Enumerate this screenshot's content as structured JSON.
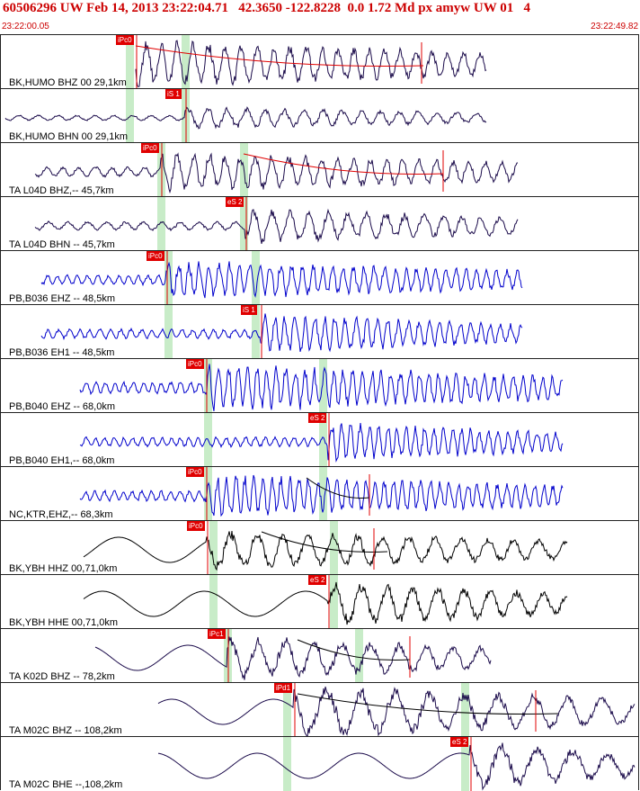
{
  "header": {
    "title": "60506296 UW Feb 14, 2013 23:22:04.71   42.3650 -122.8228  0.0 1.72 Md px amyw UW 01   4",
    "time_start": "23:22:00.05",
    "time_end": "23:22:49.82"
  },
  "colors": {
    "pick": "#e00000",
    "window": "#c8ecc8",
    "trace_dark": "#1a0a4a",
    "trace_blue": "#0000cc",
    "trace_black": "#000000",
    "coda": "#000000"
  },
  "channels": [
    {
      "label": "BK,HUMO BHZ 00 29,1km",
      "pick": "iPc0",
      "color": "trace_dark"
    },
    {
      "label": "BK,HUMO BHN 00 29,1km",
      "pick": "iS 1",
      "color": "trace_dark"
    },
    {
      "label": "TA L04D BHZ,-- 45,7km",
      "pick": "iPc0",
      "color": "trace_dark"
    },
    {
      "label": "TA L04D BHN -- 45,7km",
      "pick": "eS 2",
      "color": "trace_dark"
    },
    {
      "label": "PB,B036 EHZ -- 48,5km",
      "pick": "iPc0",
      "color": "trace_blue"
    },
    {
      "label": "PB,B036 EH1 -- 48,5km",
      "pick": "iS 1",
      "color": "trace_blue"
    },
    {
      "label": "PB,B040 EHZ -- 68,0km",
      "pick": "iPc0",
      "color": "trace_blue"
    },
    {
      "label": "PB,B040 EH1,-- 68,0km",
      "pick": "eS 2",
      "color": "trace_blue"
    },
    {
      "label": "NC,KTR,EHZ,-- 68,3km",
      "pick": "iPc0",
      "color": "trace_blue"
    },
    {
      "label": "BK,YBH HHZ 00,71,0km",
      "pick": "iPc0",
      "color": "trace_black"
    },
    {
      "label": "BK,YBH HHE 00,71,0km",
      "pick": "eS 2",
      "color": "trace_black"
    },
    {
      "label": "TA K02D BHZ -- 78,2km",
      "pick": "iPc1",
      "color": "trace_dark"
    },
    {
      "label": "TA M02C BHZ -- 108,2km",
      "pick": "iPd1",
      "color": "trace_dark"
    },
    {
      "label": "TA M02C BHE --,108,2km",
      "pick": "eS 2",
      "color": "trace_dark"
    }
  ]
}
